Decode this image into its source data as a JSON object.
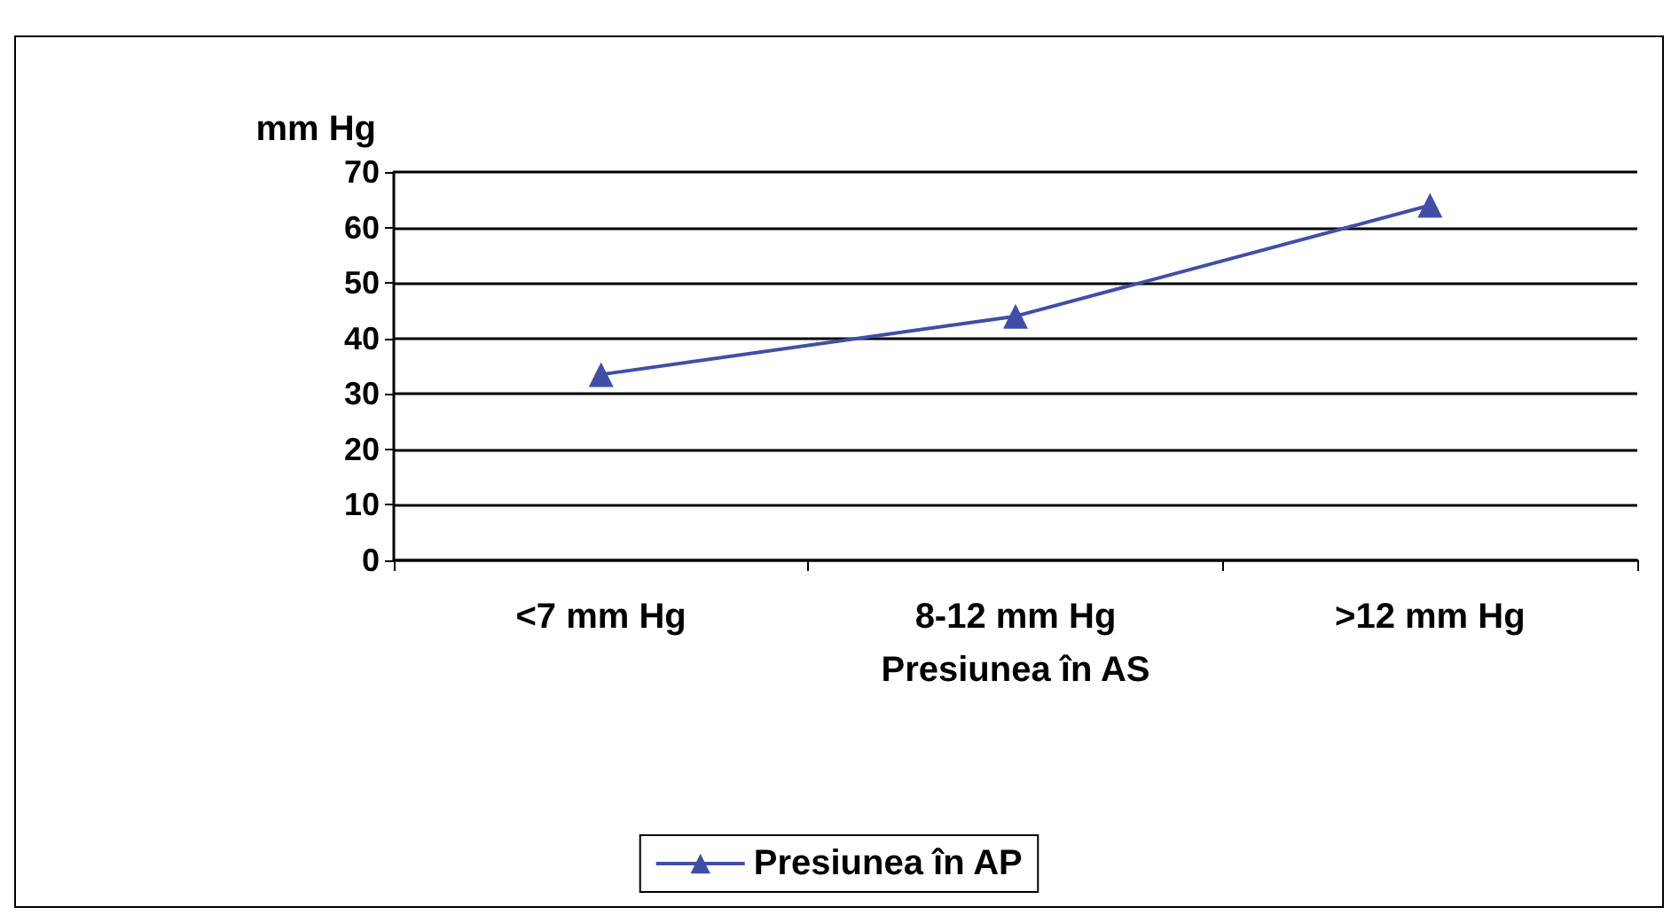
{
  "chart_data": {
    "type": "line",
    "ylabel": "mm Hg",
    "xlabel": "Presiunea în AS",
    "categories": [
      "<7 mm Hg",
      "8-12 mm Hg",
      ">12 mm Hg"
    ],
    "series": [
      {
        "name": "Presiunea în AP",
        "color": "#3f4fa8",
        "values": [
          33.5,
          44,
          64
        ]
      }
    ],
    "ylim": [
      0,
      70
    ],
    "yticks": [
      0,
      10,
      20,
      30,
      40,
      50,
      60,
      70
    ],
    "grid": "y",
    "legend": "bottom",
    "marker": "triangle"
  }
}
